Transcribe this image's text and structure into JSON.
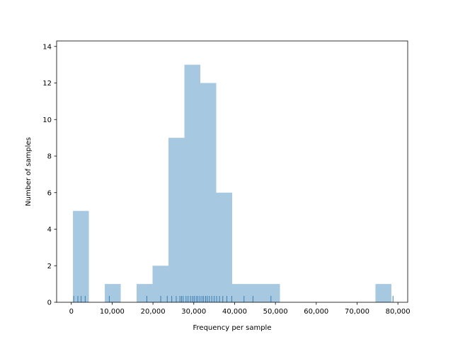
{
  "chart_data": {
    "type": "bar",
    "title": "",
    "xlabel": "Frequency per sample",
    "ylabel": "Number of samples",
    "xlim": [
      -3600,
      82400
    ],
    "ylim": [
      0,
      14.3
    ],
    "grid": false,
    "bar_color": "#a6c8e0",
    "rug_color": "#3a7fb3",
    "x_ticks": [
      0,
      10000,
      20000,
      30000,
      40000,
      50000,
      60000,
      70000,
      80000
    ],
    "x_tick_labels": [
      "0",
      "10,000",
      "20,000",
      "30,000",
      "40,000",
      "50,000",
      "60,000",
      "70,000",
      "80,000"
    ],
    "y_ticks": [
      0,
      2,
      4,
      6,
      8,
      10,
      12,
      14
    ],
    "y_tick_labels": [
      "0",
      "2",
      "4",
      "6",
      "8",
      "10",
      "12",
      "14"
    ],
    "bins": [
      {
        "x0": 400,
        "x1": 4300,
        "count": 5
      },
      {
        "x0": 4300,
        "x1": 8200,
        "count": 0
      },
      {
        "x0": 8200,
        "x1": 12100,
        "count": 1
      },
      {
        "x0": 12100,
        "x1": 16000,
        "count": 0
      },
      {
        "x0": 16000,
        "x1": 19900,
        "count": 1
      },
      {
        "x0": 19900,
        "x1": 23800,
        "count": 2
      },
      {
        "x0": 23800,
        "x1": 27700,
        "count": 9
      },
      {
        "x0": 27700,
        "x1": 31600,
        "count": 13
      },
      {
        "x0": 31600,
        "x1": 35500,
        "count": 12
      },
      {
        "x0": 35500,
        "x1": 39400,
        "count": 6
      },
      {
        "x0": 39400,
        "x1": 43300,
        "count": 1
      },
      {
        "x0": 43300,
        "x1": 47200,
        "count": 1
      },
      {
        "x0": 47200,
        "x1": 51100,
        "count": 1
      },
      {
        "x0": 51100,
        "x1": 55000,
        "count": 0
      },
      {
        "x0": 55000,
        "x1": 58900,
        "count": 0
      },
      {
        "x0": 58900,
        "x1": 62800,
        "count": 0
      },
      {
        "x0": 62800,
        "x1": 66700,
        "count": 0
      },
      {
        "x0": 66700,
        "x1": 70600,
        "count": 0
      },
      {
        "x0": 70600,
        "x1": 74500,
        "count": 0
      },
      {
        "x0": 74500,
        "x1": 78400,
        "count": 1
      }
    ],
    "rug": [
      600,
      1600,
      2400,
      3400,
      9300,
      18500,
      21900,
      23500,
      24600,
      25700,
      26600,
      27000,
      27400,
      28100,
      28600,
      29200,
      29700,
      30100,
      30600,
      31000,
      31500,
      32000,
      32400,
      32900,
      33300,
      33800,
      34400,
      35000,
      35600,
      36300,
      37100,
      38100,
      39300,
      42300,
      44500,
      48900,
      78800
    ]
  }
}
